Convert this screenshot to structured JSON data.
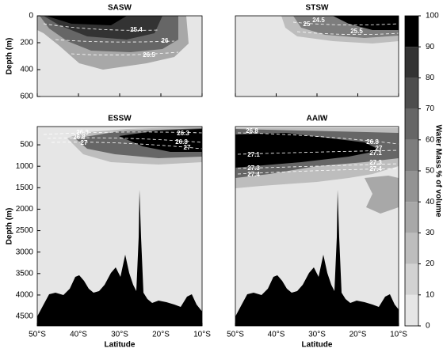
{
  "chart_data": {
    "type": "contour",
    "xlim": [
      -50,
      -10
    ],
    "xticks": [
      {
        "value": -50,
        "label": "50°S"
      },
      {
        "value": -40,
        "label": "40°S"
      },
      {
        "value": -30,
        "label": "30°S"
      },
      {
        "value": -20,
        "label": "20°S"
      },
      {
        "value": -10,
        "label": "10°S"
      }
    ],
    "panels": [
      {
        "title": "SASW",
        "y_label": "Depth (m)",
        "ylim": [
          0,
          600
        ],
        "yticks": [
          0,
          200,
          400,
          600
        ],
        "contour_labels": [
          25.4,
          26,
          26.5
        ]
      },
      {
        "title": "STSW",
        "contour_labels": [
          24.5,
          25,
          25.5
        ]
      },
      {
        "title": "ESSW",
        "y_label": "Depth (m)",
        "x_label": "Latitude",
        "ylim": [
          75,
          4720
        ],
        "yticks": [
          500,
          1000,
          1500,
          2000,
          2500,
          3000,
          3500,
          4000,
          4500
        ],
        "contour_labels": [
          26.3,
          26.8,
          27,
          26.3,
          26.8,
          27
        ]
      },
      {
        "title": "AAIW",
        "x_label": "Latitude",
        "contour_labels": [
          26.8,
          27.1,
          27.3,
          27.4,
          26.8,
          27,
          27.1,
          27.3,
          27.4
        ]
      }
    ],
    "colorbar": {
      "label": "Water Mass % of volume",
      "ylim": [
        0,
        100
      ],
      "yticks": [
        0,
        10,
        20,
        30,
        40,
        50,
        60,
        70,
        80,
        90,
        100
      ],
      "colors": [
        "#e6e6e6",
        "#d2d2d2",
        "#bdbdbd",
        "#a8a8a8",
        "#939393",
        "#7d7d7d",
        "#666666",
        "#4d4d4d",
        "#333333",
        "#000000"
      ]
    }
  }
}
